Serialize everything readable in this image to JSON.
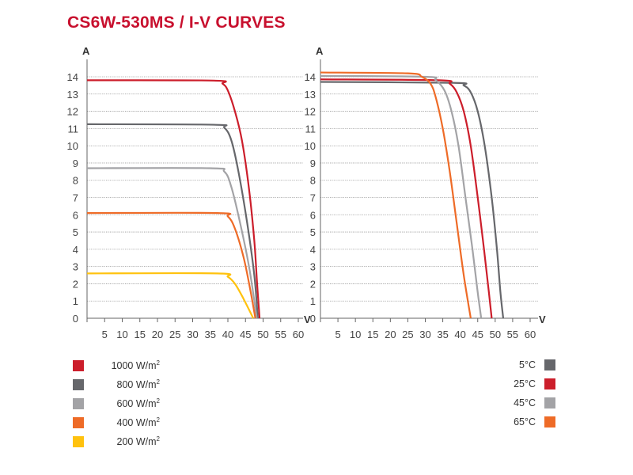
{
  "title": "CS6W-530MS / I-V CURVES",
  "chart_data": [
    {
      "type": "line",
      "title": "",
      "xlabel": "V",
      "ylabel": "A",
      "xlim": [
        0,
        60
      ],
      "ylim": [
        0,
        14
      ],
      "xticks": [
        5,
        10,
        15,
        20,
        25,
        30,
        35,
        40,
        45,
        50,
        55,
        60
      ],
      "yticks": [
        0,
        1,
        2,
        3,
        4,
        5,
        6,
        7,
        8,
        9,
        10,
        11,
        12,
        13,
        14
      ],
      "grid": true,
      "legend_position": "bottom-left",
      "series": [
        {
          "name": "1000 W/m2",
          "label_main": "1000 W/m",
          "label_sup": "2",
          "color": "#cc1e2b",
          "points": [
            [
              0,
              13.8
            ],
            [
              36,
              13.78
            ],
            [
              38.5,
              13.6
            ],
            [
              40,
              13.2
            ],
            [
              42,
              12
            ],
            [
              44,
              10.3
            ],
            [
              46,
              7.5
            ],
            [
              47.5,
              4.5
            ],
            [
              48.3,
              2
            ],
            [
              49,
              0
            ]
          ]
        },
        {
          "name": "800 W/m2",
          "label_main": "800 W/m",
          "label_sup": "2",
          "color": "#66676b",
          "points": [
            [
              0,
              11.25
            ],
            [
              36,
              11.22
            ],
            [
              39,
              11.05
            ],
            [
              41,
              10.3
            ],
            [
              43,
              8.5
            ],
            [
              45.5,
              5.5
            ],
            [
              47.5,
              2.5
            ],
            [
              48.5,
              0
            ]
          ]
        },
        {
          "name": "600 W/m2",
          "label_main": "600 W/m",
          "label_sup": "2",
          "color": "#a3a3a6",
          "points": [
            [
              0,
              8.7
            ],
            [
              35,
              8.7
            ],
            [
              39,
              8.5
            ],
            [
              41,
              7.6
            ],
            [
              43.5,
              5.5
            ],
            [
              46,
              3
            ],
            [
              47.8,
              0.6
            ],
            [
              48.2,
              0
            ]
          ]
        },
        {
          "name": "400 W/m2",
          "label_main": "400 W/m",
          "label_sup": "2",
          "color": "#ee6b27",
          "points": [
            [
              0,
              6.1
            ],
            [
              37,
              6.1
            ],
            [
              40,
              5.9
            ],
            [
              42,
              5.2
            ],
            [
              44.5,
              3.5
            ],
            [
              46.5,
              1.5
            ],
            [
              47.8,
              0
            ]
          ]
        },
        {
          "name": "200 W/m2",
          "label_main": "200 W/m",
          "label_sup": "2",
          "color": "#ffc20e",
          "points": [
            [
              0,
              2.6
            ],
            [
              37,
              2.6
            ],
            [
              40,
              2.4
            ],
            [
              42,
              2.0
            ],
            [
              44,
              1.3
            ],
            [
              46,
              0.5
            ],
            [
              47.2,
              0
            ]
          ]
        }
      ]
    },
    {
      "type": "line",
      "title": "",
      "xlabel": "V",
      "ylabel": "A",
      "xlim": [
        0,
        60
      ],
      "ylim": [
        0,
        14
      ],
      "xticks": [
        5,
        10,
        15,
        20,
        25,
        30,
        35,
        40,
        45,
        50,
        55,
        60
      ],
      "yticks": [
        0,
        1,
        2,
        3,
        4,
        5,
        6,
        7,
        8,
        9,
        10,
        11,
        12,
        13,
        14
      ],
      "grid": true,
      "legend_position": "bottom-right",
      "series": [
        {
          "name": "5°C",
          "color": "#66676b",
          "points": [
            [
              0,
              13.7
            ],
            [
              38,
              13.65
            ],
            [
              41,
              13.5
            ],
            [
              43,
              13.1
            ],
            [
              45,
              12
            ],
            [
              47,
              10
            ],
            [
              49,
              7
            ],
            [
              50.5,
              4
            ],
            [
              51.5,
              1.5
            ],
            [
              52.3,
              0
            ]
          ]
        },
        {
          "name": "25°C",
          "color": "#cc1e2b",
          "points": [
            [
              0,
              13.85
            ],
            [
              34,
              13.8
            ],
            [
              37,
              13.6
            ],
            [
              39,
              13.1
            ],
            [
              41,
              12
            ],
            [
              43,
              10
            ],
            [
              45,
              7
            ],
            [
              46.8,
              4
            ],
            [
              48.2,
              1.5
            ],
            [
              49,
              0
            ]
          ]
        },
        {
          "name": "45°C",
          "color": "#a3a3a6",
          "points": [
            [
              0,
              14.05
            ],
            [
              30,
              14.0
            ],
            [
              33,
              13.8
            ],
            [
              35.5,
              13.2
            ],
            [
              37.5,
              12
            ],
            [
              39.5,
              10
            ],
            [
              41.5,
              7
            ],
            [
              43.5,
              4
            ],
            [
              45,
              1.5
            ],
            [
              46,
              0
            ]
          ]
        },
        {
          "name": "65°C",
          "color": "#ee6b27",
          "points": [
            [
              0,
              14.25
            ],
            [
              25,
              14.2
            ],
            [
              29,
              14.0
            ],
            [
              31.5,
              13.6
            ],
            [
              33,
              12.8
            ],
            [
              35,
              11
            ],
            [
              37,
              8.5
            ],
            [
              39,
              5.5
            ],
            [
              41,
              2.5
            ],
            [
              43,
              0
            ]
          ]
        }
      ]
    }
  ]
}
